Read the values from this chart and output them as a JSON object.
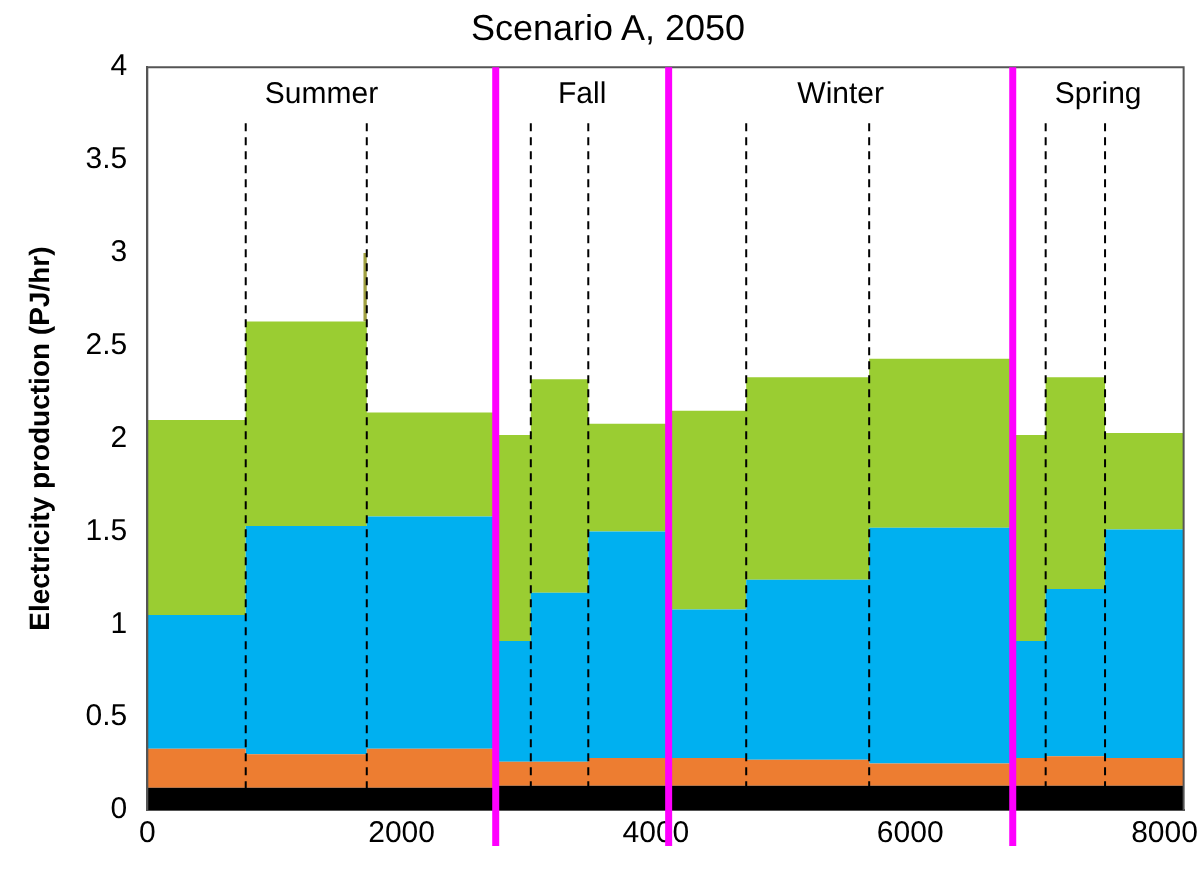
{
  "chart_data": {
    "type": "area",
    "title": "Scenario A, 2050",
    "ylabel": "Electricity production (PJ/hr)",
    "stacked": true,
    "x": [
      0,
      774,
      774,
      1700,
      1700,
      1726,
      1726,
      2740,
      2740,
      3016,
      3016,
      3468,
      3468,
      4100,
      4100,
      4710,
      4710,
      5677,
      5677,
      6806,
      6806,
      7065,
      7065,
      7532,
      7532,
      8150
    ],
    "series": [
      {
        "color": "#000000",
        "values": [
          0.12,
          0.12,
          0.12,
          0.12,
          0.12,
          0.12,
          0.12,
          0.12,
          0.13,
          0.13,
          0.13,
          0.13,
          0.13,
          0.13,
          0.13,
          0.13,
          0.13,
          0.13,
          0.13,
          0.13,
          0.13,
          0.13,
          0.13,
          0.13,
          0.13,
          0.13
        ]
      },
      {
        "color": "#ed7d31",
        "values": [
          0.21,
          0.21,
          0.18,
          0.18,
          0.18,
          0.18,
          0.21,
          0.21,
          0.13,
          0.13,
          0.13,
          0.13,
          0.15,
          0.15,
          0.15,
          0.15,
          0.14,
          0.14,
          0.12,
          0.12,
          0.15,
          0.15,
          0.16,
          0.16,
          0.15,
          0.15
        ]
      },
      {
        "color": "#00b0f0",
        "values": [
          0.72,
          0.72,
          1.23,
          1.23,
          1.23,
          1.23,
          1.25,
          1.25,
          0.65,
          0.65,
          0.91,
          0.91,
          1.22,
          1.22,
          0.8,
          0.8,
          0.97,
          0.97,
          1.27,
          1.27,
          0.63,
          0.63,
          0.9,
          0.9,
          1.23,
          1.23
        ]
      },
      {
        "color": "#9acd32",
        "values": [
          1.05,
          1.05,
          1.1,
          1.1,
          1.1,
          1.1,
          0.56,
          0.56,
          1.11,
          1.11,
          1.15,
          1.15,
          0.58,
          0.58,
          1.07,
          1.07,
          1.09,
          1.09,
          0.91,
          0.91,
          1.11,
          1.11,
          1.14,
          1.14,
          0.52,
          0.52
        ]
      },
      {
        "color": "#a0a040",
        "values": [
          0,
          0,
          0,
          0,
          0.37,
          0.37,
          0,
          0,
          0,
          0,
          0,
          0,
          0,
          0,
          0,
          0,
          0,
          0,
          0,
          0,
          0,
          0,
          0,
          0,
          0,
          0
        ]
      }
    ],
    "xlim": [
      0,
      8150
    ],
    "xticks": [
      0,
      2000,
      4000,
      6000,
      8000
    ],
    "ylim": [
      0,
      4
    ],
    "yticks": [
      0,
      0.5,
      1,
      1.5,
      2,
      2.5,
      3,
      3.5,
      4
    ],
    "ref_lines": [
      {
        "axis": "x",
        "value": 774,
        "color": "#000000",
        "line_style": "dashed"
      },
      {
        "axis": "x",
        "value": 1726,
        "color": "#000000",
        "line_style": "dashed"
      },
      {
        "axis": "x",
        "value": 3016,
        "color": "#000000",
        "line_style": "dashed"
      },
      {
        "axis": "x",
        "value": 3468,
        "color": "#000000",
        "line_style": "dashed"
      },
      {
        "axis": "x",
        "value": 4710,
        "color": "#000000",
        "line_style": "dashed"
      },
      {
        "axis": "x",
        "value": 5677,
        "color": "#000000",
        "line_style": "dashed"
      },
      {
        "axis": "x",
        "value": 7065,
        "color": "#000000",
        "line_style": "dashed"
      },
      {
        "axis": "x",
        "value": 7532,
        "color": "#000000",
        "line_style": "dashed"
      },
      {
        "axis": "x",
        "value": 2740,
        "color": "#ff00ff",
        "line_style": "solid"
      },
      {
        "axis": "x",
        "value": 4100,
        "color": "#ff00ff",
        "line_style": "solid"
      },
      {
        "axis": "x",
        "value": 6806,
        "color": "#ff00ff",
        "line_style": "solid"
      }
    ],
    "annotations": [
      "Summer",
      "Fall",
      "Winter",
      "Spring"
    ],
    "legend": false,
    "grid": false
  }
}
